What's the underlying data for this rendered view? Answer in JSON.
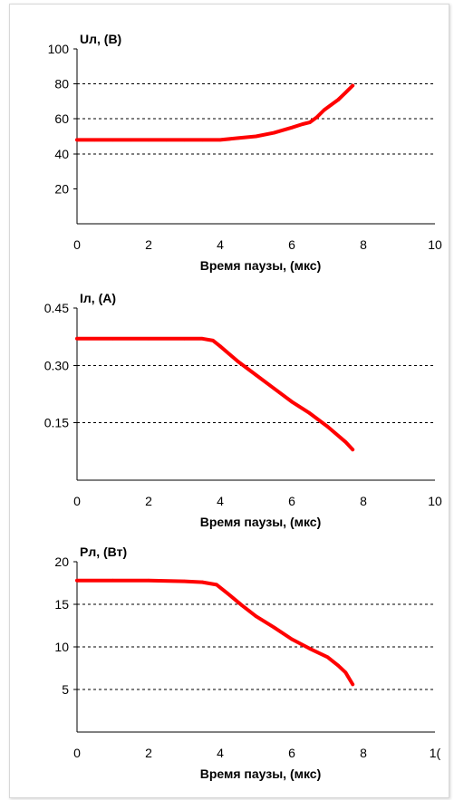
{
  "chart_data": [
    {
      "type": "line",
      "ylabel": "Uл, (В)",
      "xlabel": "Время паузы, (мкс)",
      "xlim": [
        0,
        10
      ],
      "ylim": [
        0,
        100
      ],
      "xticks": [
        "0",
        "2",
        "4",
        "6",
        "8",
        "10"
      ],
      "yticks": [
        {
          "v": 20,
          "label": "20"
        },
        {
          "v": 40,
          "label": "40"
        },
        {
          "v": 60,
          "label": "60"
        },
        {
          "v": 80,
          "label": "80"
        },
        {
          "v": 100,
          "label": "100"
        }
      ],
      "grid_y": [
        40,
        60,
        80
      ],
      "series": [
        {
          "color": "#ff0000",
          "x": [
            0,
            0.5,
            1,
            1.5,
            2,
            2.5,
            3,
            3.5,
            4,
            4.5,
            5,
            5.5,
            6,
            6.3,
            6.5,
            6.7,
            6.9,
            7.1,
            7.3,
            7.5,
            7.7
          ],
          "y": [
            48,
            48,
            48,
            48,
            48,
            48,
            48,
            48,
            48,
            49,
            50,
            52,
            55,
            57,
            58,
            61,
            65,
            68,
            71,
            75,
            79
          ]
        }
      ]
    },
    {
      "type": "line",
      "ylabel": "Iл, (А)",
      "xlabel": "Время паузы, (мкс)",
      "xlim": [
        0,
        10
      ],
      "ylim": [
        0,
        0.45
      ],
      "xticks": [
        "0",
        "2",
        "4",
        "6",
        "8",
        "10"
      ],
      "yticks": [
        {
          "v": 0.15,
          "label": "0.15"
        },
        {
          "v": 0.3,
          "label": "0.30"
        },
        {
          "v": 0.45,
          "label": "0.45"
        }
      ],
      "grid_y": [
        0.15,
        0.3
      ],
      "series": [
        {
          "color": "#ff0000",
          "x": [
            0,
            1,
            2,
            3,
            3.5,
            3.8,
            4,
            4.5,
            5,
            5.5,
            6,
            6.5,
            7,
            7.5,
            7.7
          ],
          "y": [
            0.37,
            0.37,
            0.37,
            0.37,
            0.37,
            0.365,
            0.35,
            0.31,
            0.275,
            0.24,
            0.205,
            0.175,
            0.14,
            0.1,
            0.08
          ]
        }
      ]
    },
    {
      "type": "line",
      "ylabel": "Рл, (Вт)",
      "xlabel": "Время паузы, (мкс)",
      "xlim": [
        0,
        10
      ],
      "ylim": [
        0,
        20
      ],
      "xticks": [
        "0",
        "2",
        "4",
        "6",
        "8",
        "1("
      ],
      "yticks": [
        {
          "v": 5,
          "label": "5"
        },
        {
          "v": 10,
          "label": "10"
        },
        {
          "v": 15,
          "label": "15"
        },
        {
          "v": 20,
          "label": "20"
        }
      ],
      "grid_y": [
        5,
        10,
        15
      ],
      "series": [
        {
          "color": "#ff0000",
          "x": [
            0,
            1,
            2,
            3,
            3.5,
            3.9,
            4.2,
            4.6,
            5,
            5.5,
            6,
            6.5,
            7,
            7.3,
            7.5,
            7.7
          ],
          "y": [
            17.8,
            17.8,
            17.8,
            17.7,
            17.6,
            17.3,
            16.3,
            14.9,
            13.6,
            12.3,
            10.9,
            9.8,
            8.8,
            7.8,
            7.0,
            5.6
          ]
        }
      ]
    }
  ]
}
